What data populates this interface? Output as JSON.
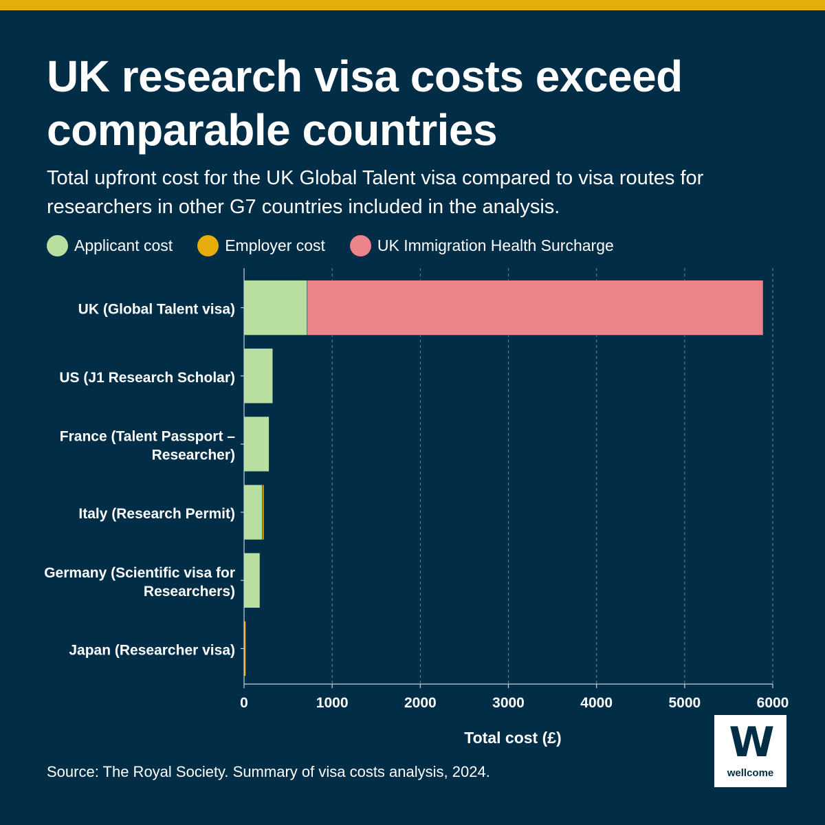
{
  "title": "UK research visa costs exceed comparable countries",
  "subtitle": "Total upfront cost for the UK Global Talent visa compared to visa routes for researchers in other G7 countries included in the analysis.",
  "legend": [
    {
      "label": "Applicant cost",
      "color": "#b8dea0"
    },
    {
      "label": "Employer cost",
      "color": "#e6ad0a"
    },
    {
      "label": "UK Immigration Health Surcharge",
      "color": "#ec858b"
    }
  ],
  "source": "Source: The Royal Society. Summary of visa costs analysis, 2024.",
  "logo": {
    "mark": "W",
    "word": "wellcome"
  },
  "chart_data": {
    "type": "bar",
    "orientation": "horizontal",
    "stacked": true,
    "categories": [
      [
        "UK (Global Talent visa)"
      ],
      [
        "US (J1 Research Scholar)"
      ],
      [
        "France (Talent Passport –",
        "Researcher)"
      ],
      [
        "Italy (Research Permit)"
      ],
      [
        "Germany (Scientific visa for",
        "Researchers)"
      ],
      [
        "Japan (Researcher visa)"
      ]
    ],
    "series": [
      {
        "name": "Applicant cost",
        "color": "#b8dea0",
        "values": [
          716,
          326,
          284,
          206,
          180,
          0
        ]
      },
      {
        "name": "Employer cost",
        "color": "#e6ad0a",
        "values": [
          0,
          0,
          0,
          20,
          0,
          20
        ]
      },
      {
        "name": "UK Immigration Health Surcharge",
        "color": "#ec858b",
        "values": [
          5175,
          0,
          0,
          0,
          0,
          0
        ]
      }
    ],
    "xlabel": "Total cost (£)",
    "xlim": [
      0,
      6000
    ],
    "xticks": [
      0,
      1000,
      2000,
      3000,
      4000,
      5000,
      6000
    ],
    "grid": "vertical dashed",
    "legend_position": "top"
  }
}
